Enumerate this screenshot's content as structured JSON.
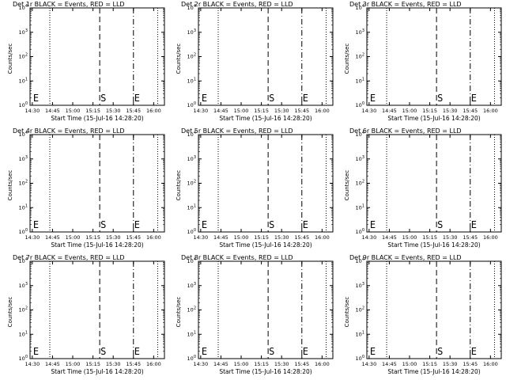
{
  "chart_data": [
    {
      "type": "line",
      "title": "Det 1r BLACK = Events, RED = LLD",
      "xlabel": "Start Time (15-Jul-16 14:28:20)",
      "ylabel": "Counts/sec",
      "x_ticks": [
        "14:30",
        "14:45",
        "15:00",
        "15:15",
        "15:30",
        "15:45",
        "16:00"
      ],
      "y_ticks": [
        "0",
        "1",
        "2",
        "3",
        "4"
      ],
      "y_scale": "log",
      "markers": [
        {
          "label": "E",
          "x": "14:30"
        },
        {
          "label": "S",
          "x": "15:20"
        },
        {
          "label": "E",
          "x": "15:45"
        }
      ],
      "series": []
    },
    {
      "type": "line",
      "title": "Det 2r BLACK = Events, RED = LLD",
      "xlabel": "Start Time (15-Jul-16 14:28:20)",
      "ylabel": "Counts/sec",
      "x_ticks": [
        "14:30",
        "14:45",
        "15:00",
        "15:15",
        "15:30",
        "15:45",
        "16:00"
      ],
      "y_ticks": [
        "0",
        "1",
        "2",
        "3",
        "4"
      ],
      "y_scale": "log",
      "markers": [
        {
          "label": "E",
          "x": "14:30"
        },
        {
          "label": "S",
          "x": "15:20"
        },
        {
          "label": "E",
          "x": "15:45"
        }
      ],
      "series": []
    },
    {
      "type": "line",
      "title": "Det 3r BLACK = Events, RED = LLD",
      "xlabel": "Start Time (15-Jul-16 14:28:20)",
      "ylabel": "Counts/sec",
      "x_ticks": [
        "14:30",
        "14:45",
        "15:00",
        "15:15",
        "15:30",
        "15:45",
        "16:00"
      ],
      "y_ticks": [
        "0",
        "1",
        "2",
        "3",
        "4"
      ],
      "y_scale": "log",
      "markers": [
        {
          "label": "E",
          "x": "14:30"
        },
        {
          "label": "S",
          "x": "15:20"
        },
        {
          "label": "E",
          "x": "15:45"
        }
      ],
      "series": []
    },
    {
      "type": "line",
      "title": "Det 4r BLACK = Events, RED = LLD",
      "xlabel": "Start Time (15-Jul-16 14:28:20)",
      "ylabel": "Counts/sec",
      "x_ticks": [
        "14:30",
        "14:45",
        "15:00",
        "15:15",
        "15:30",
        "15:45",
        "16:00"
      ],
      "y_ticks": [
        "0",
        "1",
        "2",
        "3",
        "4"
      ],
      "y_scale": "log",
      "markers": [
        {
          "label": "E",
          "x": "14:30"
        },
        {
          "label": "S",
          "x": "15:20"
        },
        {
          "label": "E",
          "x": "15:45"
        }
      ],
      "series": []
    },
    {
      "type": "line",
      "title": "Det 5r BLACK = Events, RED = LLD",
      "xlabel": "Start Time (15-Jul-16 14:28:20)",
      "ylabel": "Counts/sec",
      "x_ticks": [
        "14:30",
        "14:45",
        "15:00",
        "15:15",
        "15:30",
        "15:45",
        "16:00"
      ],
      "y_ticks": [
        "0",
        "1",
        "2",
        "3",
        "4"
      ],
      "y_scale": "log",
      "markers": [
        {
          "label": "E",
          "x": "14:30"
        },
        {
          "label": "S",
          "x": "15:20"
        },
        {
          "label": "E",
          "x": "15:45"
        }
      ],
      "series": []
    },
    {
      "type": "line",
      "title": "Det 6r BLACK = Events, RED = LLD",
      "xlabel": "Start Time (15-Jul-16 14:28:20)",
      "ylabel": "Counts/sec",
      "x_ticks": [
        "14:30",
        "14:45",
        "15:00",
        "15:15",
        "15:30",
        "15:45",
        "16:00"
      ],
      "y_ticks": [
        "0",
        "1",
        "2",
        "3",
        "4"
      ],
      "y_scale": "log",
      "markers": [
        {
          "label": "E",
          "x": "14:30"
        },
        {
          "label": "S",
          "x": "15:20"
        },
        {
          "label": "E",
          "x": "15:45"
        }
      ],
      "series": []
    },
    {
      "type": "line",
      "title": "Det 7r BLACK = Events, RED = LLD",
      "xlabel": "Start Time (15-Jul-16 14:28:20)",
      "ylabel": "Counts/sec",
      "x_ticks": [
        "14:30",
        "14:45",
        "15:00",
        "15:15",
        "15:30",
        "15:45",
        "16:00"
      ],
      "y_ticks": [
        "0",
        "1",
        "2",
        "3",
        "4"
      ],
      "y_scale": "log",
      "markers": [
        {
          "label": "E",
          "x": "14:30"
        },
        {
          "label": "S",
          "x": "15:20"
        },
        {
          "label": "E",
          "x": "15:45"
        }
      ],
      "series": []
    },
    {
      "type": "line",
      "title": "Det 8r BLACK = Events, RED = LLD",
      "xlabel": "Start Time (15-Jul-16 14:28:20)",
      "ylabel": "Counts/sec",
      "x_ticks": [
        "14:30",
        "14:45",
        "15:00",
        "15:15",
        "15:30",
        "15:45",
        "16:00"
      ],
      "y_ticks": [
        "0",
        "1",
        "2",
        "3",
        "4"
      ],
      "y_scale": "log",
      "markers": [
        {
          "label": "E",
          "x": "14:30"
        },
        {
          "label": "S",
          "x": "15:20"
        },
        {
          "label": "E",
          "x": "15:45"
        }
      ],
      "series": []
    },
    {
      "type": "line",
      "title": "Det 9r BLACK = Events, RED = LLD",
      "xlabel": "Start Time (15-Jul-16 14:28:20)",
      "ylabel": "Counts/sec",
      "x_ticks": [
        "14:30",
        "14:45",
        "15:00",
        "15:15",
        "15:30",
        "15:45",
        "16:00"
      ],
      "y_ticks": [
        "0",
        "1",
        "2",
        "3",
        "4"
      ],
      "y_scale": "log",
      "markers": [
        {
          "label": "E",
          "x": "14:30"
        },
        {
          "label": "S",
          "x": "15:20"
        },
        {
          "label": "E",
          "x": "15:45"
        }
      ],
      "series": []
    }
  ]
}
